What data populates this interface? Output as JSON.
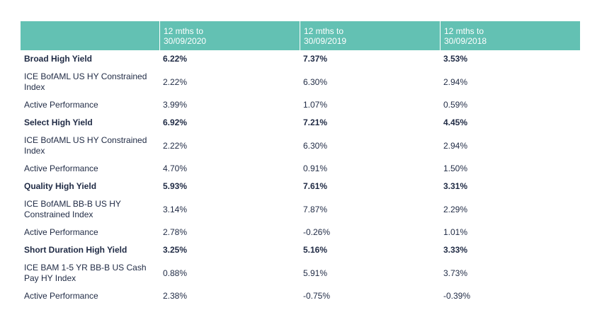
{
  "columns": [
    "",
    "12 mths to\n30/09/2020",
    "12 mths to\n30/09/2019",
    "12 mths to\n30/09/2018"
  ],
  "column_headers": [
    {
      "line1": "12 mths to",
      "line2": "30/09/2020"
    },
    {
      "line1": "12 mths to",
      "line2": "30/09/2019"
    },
    {
      "line1": "12 mths to",
      "line2": "30/09/2018"
    }
  ],
  "rows": [
    {
      "label": "Broad High Yield",
      "v2020": "6.22%",
      "v2019": "7.37%",
      "v2018": "3.53%",
      "bold": true
    },
    {
      "label": "ICE BofAML US HY Constrained Index",
      "v2020": "2.22%",
      "v2019": "6.30%",
      "v2018": "2.94%",
      "bold": false
    },
    {
      "label": "Active Performance",
      "v2020": "3.99%",
      "v2019": "1.07%",
      "v2018": "0.59%",
      "bold": false
    },
    {
      "label": "Select High Yield",
      "v2020": "6.92%",
      "v2019": "7.21%",
      "v2018": "4.45%",
      "bold": true
    },
    {
      "label": "ICE BofAML US HY Constrained Index",
      "v2020": "2.22%",
      "v2019": "6.30%",
      "v2018": "2.94%",
      "bold": false
    },
    {
      "label": "Active Performance",
      "v2020": "4.70%",
      "v2019": "0.91%",
      "v2018": "1.50%",
      "bold": false
    },
    {
      "label": "Quality High Yield",
      "v2020": "5.93%",
      "v2019": "7.61%",
      "v2018": "3.31%",
      "bold": true
    },
    {
      "label": "ICE BofAML BB-B US HY Constrained Index",
      "v2020": "3.14%",
      "v2019": "7.87%",
      "v2018": "2.29%",
      "bold": false
    },
    {
      "label": "Active Performance",
      "v2020": "2.78%",
      "v2019": "-0.26%",
      "v2018": "1.01%",
      "bold": false
    },
    {
      "label": "Short Duration High Yield",
      "v2020": "3.25%",
      "v2019": "5.16%",
      "v2018": "3.33%",
      "bold": true
    },
    {
      "label": "ICE BAM 1-5 YR BB-B US Cash Pay HY Index",
      "v2020": "0.88%",
      "v2019": "5.91%",
      "v2018": "3.73%",
      "bold": false
    },
    {
      "label": "Active Performance",
      "v2020": "2.38%",
      "v2019": "-0.75%",
      "v2018": "-0.39%",
      "bold": false
    }
  ],
  "colors": {
    "header_bg": "#63c1b3",
    "header_text": "#ffffff",
    "body_text": "#1f2a44"
  }
}
